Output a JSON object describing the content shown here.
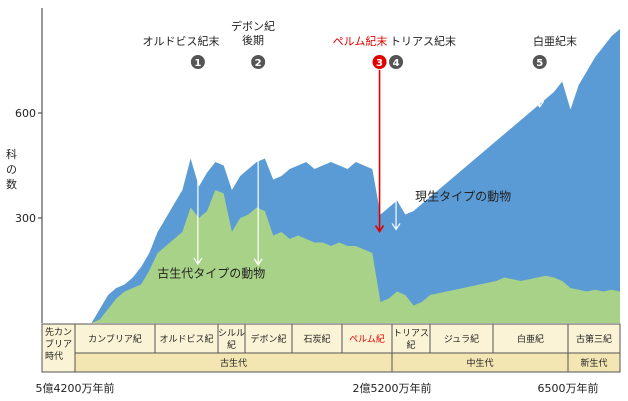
{
  "chart_data": {
    "type": "area",
    "yticks": [
      300,
      600
    ],
    "ylim": [
      0,
      900
    ],
    "ylabel": "科の数",
    "series": [
      {
        "name": "古生代タイプの動物",
        "color": "#a8d288",
        "x": [
          0,
          10,
          20,
          30,
          40,
          50,
          60,
          70,
          80,
          90,
          100,
          110,
          120,
          130,
          140,
          150,
          160,
          170,
          180,
          190,
          200,
          210,
          220,
          230,
          240,
          250,
          260,
          270,
          280,
          290,
          300,
          310,
          320,
          330,
          340,
          350,
          360,
          370,
          380,
          390,
          400,
          410,
          420,
          430,
          440,
          450,
          460,
          470,
          480,
          490,
          500,
          510,
          520,
          530,
          540,
          550,
          560,
          570,
          580,
          590,
          600,
          610,
          620,
          630,
          640,
          650,
          660,
          670,
          680,
          690,
          700
        ],
        "values": [
          0,
          0,
          0,
          0,
          0,
          0,
          0,
          10,
          40,
          70,
          90,
          100,
          110,
          150,
          200,
          220,
          240,
          260,
          330,
          300,
          320,
          380,
          370,
          260,
          300,
          310,
          330,
          320,
          250,
          260,
          240,
          250,
          240,
          230,
          230,
          220,
          230,
          220,
          220,
          210,
          200,
          60,
          70,
          90,
          80,
          50,
          60,
          80,
          85,
          90,
          95,
          100,
          105,
          110,
          115,
          120,
          130,
          125,
          120,
          125,
          130,
          135,
          130,
          120,
          100,
          95,
          90,
          95,
          90,
          95,
          90
        ]
      },
      {
        "name": "現生タイプの動物",
        "color": "#5b9bd5",
        "x": [
          0,
          10,
          20,
          30,
          40,
          50,
          60,
          70,
          80,
          90,
          100,
          110,
          120,
          130,
          140,
          150,
          160,
          170,
          180,
          190,
          200,
          210,
          220,
          230,
          240,
          250,
          260,
          270,
          280,
          290,
          300,
          310,
          320,
          330,
          340,
          350,
          360,
          370,
          380,
          390,
          400,
          410,
          420,
          430,
          440,
          450,
          460,
          470,
          480,
          490,
          500,
          510,
          520,
          530,
          540,
          550,
          560,
          570,
          580,
          590,
          600,
          610,
          620,
          630,
          640,
          650,
          660,
          670,
          680,
          690,
          700
        ],
        "values": [
          0,
          0,
          0,
          0,
          0,
          0,
          0,
          40,
          80,
          100,
          110,
          130,
          160,
          200,
          260,
          300,
          340,
          380,
          470,
          390,
          430,
          460,
          450,
          380,
          420,
          440,
          460,
          470,
          410,
          420,
          440,
          450,
          460,
          440,
          450,
          460,
          450,
          440,
          460,
          450,
          440,
          310,
          330,
          350,
          310,
          320,
          340,
          360,
          380,
          400,
          420,
          440,
          460,
          480,
          500,
          520,
          540,
          560,
          580,
          600,
          620,
          640,
          660,
          690,
          610,
          680,
          720,
          760,
          790,
          820,
          840
        ]
      }
    ],
    "events": [
      {
        "num": "1",
        "label": "オルドビス紀末"
      },
      {
        "num": "2",
        "label": "デボン紀\n後期"
      },
      {
        "num": "3",
        "label": "ペルム紀末",
        "highlight": true
      },
      {
        "num": "4",
        "label": "トリアス紀末"
      },
      {
        "num": "5",
        "label": "白亜紀末"
      }
    ],
    "annotations": {
      "paleo_label": "古生代タイプの動物",
      "modern_label": "現生タイプの動物"
    },
    "table": {
      "row_header": [
        "先カン\nブリア\n時代"
      ],
      "periods": [
        "カンブリア紀",
        "オルドビス紀",
        "シルル\n紀",
        "デボン紀",
        "石炭紀",
        "ペルム紀",
        "トリアス\n紀",
        "ジュラ紀",
        "白亜紀",
        "古第三紀"
      ],
      "eras": [
        "古生代",
        "中生代",
        "新生代"
      ]
    },
    "time_labels": [
      "5億4200万年前",
      "2億5200万年前",
      "6500万年前"
    ]
  },
  "colors": {
    "paleo": "#a8d288",
    "modern": "#5b9bd5",
    "highlight": "#e00000",
    "marker": "#555555",
    "era_bg": "#f3e6b3",
    "period_bg": "#fbf3d5"
  }
}
